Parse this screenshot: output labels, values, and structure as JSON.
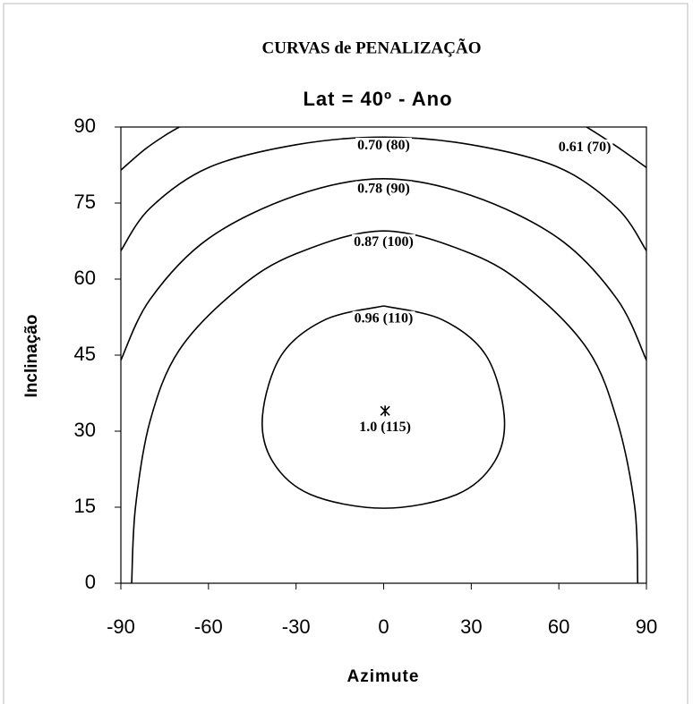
{
  "chart_data": {
    "type": "contour",
    "title": "CURVAS de PENALIZAÇÃO",
    "subtitle": "Lat = 40º - Ano",
    "x_label": "Azimute",
    "y_label": "Inclinação",
    "xlim": [
      -90,
      90
    ],
    "ylim": [
      0,
      90
    ],
    "xticks": [
      -90,
      -60,
      -30,
      0,
      30,
      60,
      90
    ],
    "yticks": [
      0,
      15,
      30,
      45,
      60,
      75,
      90
    ],
    "color": "#000000",
    "series": [
      {
        "name": "0.61 (70)",
        "x": [
          -90,
          -82,
          -75,
          -70,
          null,
          69.5,
          75,
          82,
          90
        ],
        "y": [
          81.5,
          85.5,
          88.3,
          90,
          null,
          90,
          88,
          85.3,
          82
        ]
      },
      {
        "name": "0.70 (80)",
        "x": [
          -90,
          -80,
          -60,
          -30,
          0,
          30,
          60,
          80,
          90
        ],
        "y": [
          65.6,
          74,
          82,
          86.5,
          88,
          86.5,
          82,
          74,
          65.6
        ]
      },
      {
        "name": "0.78 (90)",
        "x": [
          -90,
          -80,
          -60,
          -30,
          0,
          30,
          60,
          80,
          90
        ],
        "y": [
          44,
          56,
          68,
          76.5,
          79.8,
          76.5,
          68,
          56,
          44
        ]
      },
      {
        "name": "0.87 (100)",
        "x": [
          -86.3,
          -85,
          -80,
          -70,
          -50,
          -30,
          0,
          30,
          50,
          70,
          80,
          86,
          87
        ],
        "y": [
          0,
          15,
          32,
          46,
          58,
          65,
          69.5,
          65,
          58,
          46,
          32,
          15,
          0
        ]
      },
      {
        "name": "0.96 (110)",
        "x": [
          0,
          20,
          35,
          41.3,
          38,
          25,
          0,
          -25,
          -38,
          -41.5,
          -35,
          -20,
          0
        ],
        "y": [
          54.7,
          52,
          45,
          33,
          24,
          17.5,
          14.8,
          17.5,
          24,
          33,
          45,
          52,
          54.7
        ]
      }
    ],
    "points": [
      {
        "name": "1.0 (115)",
        "x": 0.5,
        "y": 34
      }
    ]
  }
}
